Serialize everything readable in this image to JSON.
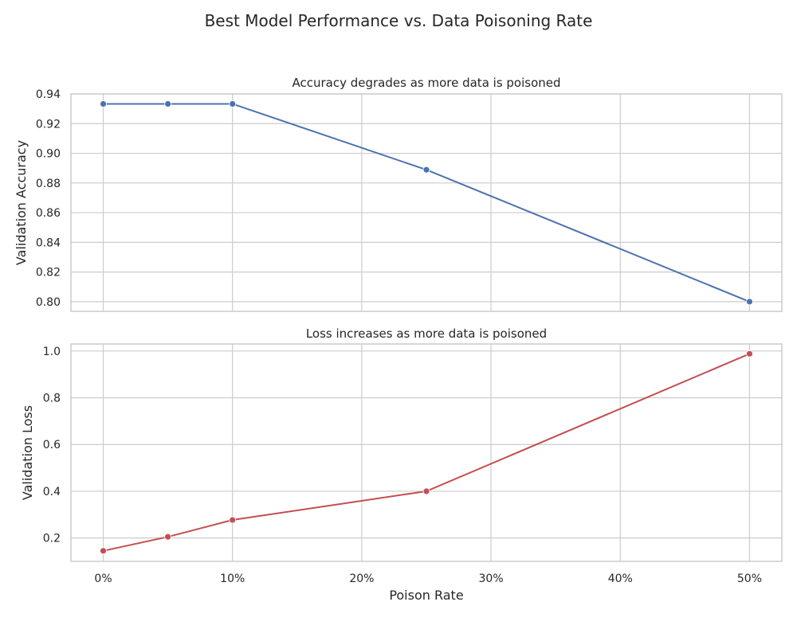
{
  "figure": {
    "title": "Best Model Performance vs. Data Poisoning Rate",
    "grid": true
  },
  "chart_data": [
    {
      "type": "line",
      "title": "Accuracy degrades as more data is poisoned",
      "xlabel": "",
      "ylabel": "Validation Accuracy",
      "x": [
        0,
        5,
        10,
        25,
        50
      ],
      "xlim": [
        -2.5,
        52.5
      ],
      "xticks": [
        0,
        10,
        20,
        30,
        40,
        50
      ],
      "xtick_labels": [
        "0%",
        "10%",
        "20%",
        "30%",
        "40%",
        "50%"
      ],
      "ylim": [
        0.7935,
        0.94
      ],
      "yticks": [
        0.8,
        0.82,
        0.84,
        0.86,
        0.88,
        0.9,
        0.92,
        0.94
      ],
      "ytick_labels": [
        "0.80",
        "0.82",
        "0.84",
        "0.86",
        "0.88",
        "0.90",
        "0.92",
        "0.94"
      ],
      "show_xtick_labels": false,
      "series": [
        {
          "values": [
            0.9333,
            0.9333,
            0.9333,
            0.8889,
            0.8
          ],
          "color": "#4c72b0",
          "marker": "circle"
        }
      ]
    },
    {
      "type": "line",
      "title": "Loss increases as more data is poisoned",
      "xlabel": "Poison Rate",
      "ylabel": "Validation Loss",
      "x": [
        0,
        5,
        10,
        25,
        50
      ],
      "xlim": [
        -2.5,
        52.5
      ],
      "xticks": [
        0,
        10,
        20,
        30,
        40,
        50
      ],
      "xtick_labels": [
        "0%",
        "10%",
        "20%",
        "30%",
        "40%",
        "50%"
      ],
      "ylim": [
        0.1,
        1.03
      ],
      "yticks": [
        0.2,
        0.4,
        0.6,
        0.8,
        1.0
      ],
      "ytick_labels": [
        "0.2",
        "0.4",
        "0.6",
        "0.8",
        "1.0"
      ],
      "show_xtick_labels": true,
      "series": [
        {
          "values": [
            0.145,
            0.205,
            0.277,
            0.4,
            0.988
          ],
          "color": "#c44e52",
          "marker": "circle"
        }
      ]
    }
  ]
}
